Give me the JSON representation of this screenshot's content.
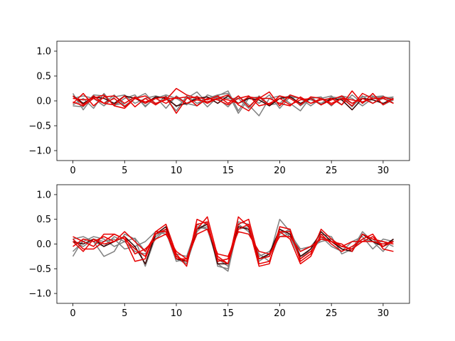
{
  "chart_data": [
    {
      "type": "line",
      "title": "",
      "xlabel": "",
      "ylabel": "",
      "xlim": [
        -1.55,
        32.55
      ],
      "ylim": [
        -1.2,
        1.2
      ],
      "xticks": [
        0,
        5,
        10,
        15,
        20,
        25,
        30
      ],
      "yticks": [
        -1.0,
        -0.5,
        0.0,
        0.5,
        1.0
      ],
      "ytick_labels": [
        "−1.0",
        "−0.5",
        "0.0",
        "0.5",
        "1.0"
      ],
      "grid": false,
      "x": [
        0,
        1,
        2,
        3,
        4,
        5,
        6,
        7,
        8,
        9,
        10,
        11,
        12,
        13,
        14,
        15,
        16,
        17,
        18,
        19,
        20,
        21,
        22,
        23,
        24,
        25,
        26,
        27,
        28,
        29,
        30,
        31
      ],
      "series": [
        {
          "color": "#808080",
          "values": [
            0.15,
            -0.18,
            0.1,
            -0.05,
            0.12,
            -0.1,
            0.05,
            0.15,
            -0.08,
            0.1,
            -0.12,
            0.05,
            0.18,
            -0.05,
            0.1,
            0.2,
            -0.2,
            0.1,
            -0.05,
            0.12,
            -0.15,
            0.08,
            0.05,
            -0.1,
            0.05,
            0.1,
            -0.08,
            0.12,
            -0.05,
            0.08,
            0.1,
            -0.05
          ]
        },
        {
          "color": "#808080",
          "values": [
            -0.08,
            0.05,
            -0.15,
            0.15,
            -0.1,
            0.05,
            0.12,
            -0.12,
            0.08,
            -0.15,
            0.1,
            -0.05,
            -0.1,
            0.12,
            0.05,
            -0.12,
            0.1,
            -0.08,
            -0.3,
            0.05,
            0.1,
            -0.05,
            -0.2,
            0.08,
            -0.08,
            0.05,
            0.08,
            -0.12,
            0.1,
            -0.05,
            0.05,
            0.08
          ]
        },
        {
          "color": "#808080",
          "values": [
            0.05,
            0.1,
            0.05,
            -0.1,
            0.08,
            0.12,
            -0.05,
            0.05,
            0.1,
            0.05,
            -0.2,
            0.1,
            -0.05,
            0.05,
            0.12,
            0.15,
            -0.25,
            0.05,
            0.08,
            -0.1,
            0.05,
            0.1,
            0.05,
            0.02,
            -0.05,
            0.08,
            0.05,
            -0.05,
            0.08,
            0.1,
            -0.08,
            0.02
          ]
        },
        {
          "color": "#808080",
          "values": [
            -0.1,
            -0.12,
            0.12,
            0.1,
            -0.08,
            -0.05,
            0.08,
            -0.1,
            0.05,
            0.12,
            0.05,
            -0.08,
            0.1,
            -0.12,
            0.08,
            0.05,
            0.05,
            -0.15,
            0.1,
            -0.08,
            -0.05,
            0.12,
            -0.1,
            0.05,
            0.08,
            -0.1,
            0.1,
            0.05,
            -0.1,
            0.05,
            0.08,
            0.05
          ]
        },
        {
          "color": "#3a0000",
          "values": [
            0.1,
            -0.05,
            0.08,
            0.05,
            -0.05,
            0.1,
            0.05,
            -0.05,
            0.08,
            0.05,
            -0.1,
            -0.05,
            0.05,
            0.08,
            -0.05,
            0.1,
            -0.05,
            0.05,
            0.02,
            -0.1,
            0.05,
            0.08,
            -0.05,
            0.05,
            -0.08,
            0.05,
            0.02,
            -0.18,
            0.05,
            0.02,
            -0.05,
            0.05
          ]
        },
        {
          "color": "#e60000",
          "values": [
            0.1,
            -0.08,
            0.1,
            -0.05,
            0.05,
            -0.12,
            0.05,
            0.1,
            -0.05,
            0.02,
            0.25,
            0.12,
            0.05,
            -0.05,
            0.05,
            0.12,
            -0.08,
            -0.2,
            0.05,
            0.18,
            -0.1,
            0.12,
            0.05,
            -0.05,
            0.02,
            0.05,
            -0.08,
            0.2,
            -0.05,
            0.15,
            -0.08,
            0.05
          ]
        },
        {
          "color": "#e60000",
          "values": [
            -0.05,
            0.15,
            -0.1,
            0.08,
            0.1,
            -0.05,
            0.08,
            -0.05,
            0.05,
            0.08,
            -0.25,
            0.05,
            0.08,
            0.02,
            0.1,
            -0.05,
            0.1,
            -0.12,
            0.08,
            -0.08,
            0.1,
            0.05,
            -0.08,
            0.08,
            0.05,
            -0.05,
            0.05,
            -0.1,
            0.15,
            0.05,
            0.05,
            -0.05
          ]
        },
        {
          "color": "#e60000",
          "values": [
            0.05,
            0.02,
            0.05,
            -0.05,
            -0.08,
            0.1,
            -0.12,
            0.05,
            -0.08,
            0.05,
            0.05,
            0.08,
            -0.1,
            0.05,
            0.02,
            -0.08,
            0.05,
            0.1,
            -0.1,
            -0.05,
            0.05,
            -0.08,
            0.02,
            0.05,
            -0.08,
            0.02,
            0.1,
            -0.05,
            0.05,
            -0.05,
            0.08,
            0.02
          ]
        },
        {
          "color": "#e60000",
          "values": [
            -0.02,
            -0.1,
            0.05,
            0.12,
            -0.1,
            -0.15,
            0.05,
            -0.02,
            0.05,
            -0.05,
            0.08,
            -0.05,
            0.02,
            -0.02,
            0.05,
            0.02,
            -0.05,
            0.08,
            0.05,
            0.05,
            -0.05,
            -0.1,
            0.08,
            -0.05,
            0.05,
            -0.08,
            0.05,
            0.02,
            -0.02,
            0.05,
            0.05,
            -0.05
          ]
        }
      ]
    },
    {
      "type": "line",
      "title": "",
      "xlabel": "",
      "ylabel": "",
      "xlim": [
        -1.55,
        32.55
      ],
      "ylim": [
        -1.2,
        1.2
      ],
      "xticks": [
        0,
        5,
        10,
        15,
        20,
        25,
        30
      ],
      "yticks": [
        -1.0,
        -0.5,
        0.0,
        0.5,
        1.0
      ],
      "ytick_labels": [
        "−1.0",
        "−0.5",
        "0.0",
        "0.5",
        "1.0"
      ],
      "grid": false,
      "x": [
        0,
        1,
        2,
        3,
        4,
        5,
        6,
        7,
        8,
        9,
        10,
        11,
        12,
        13,
        14,
        15,
        16,
        17,
        18,
        19,
        20,
        21,
        22,
        23,
        24,
        25,
        26,
        27,
        28,
        29,
        30,
        31
      ],
      "series": [
        {
          "color": "#808080",
          "values": [
            0.1,
            0.15,
            0.05,
            -0.25,
            -0.15,
            0.2,
            0.1,
            -0.45,
            0.15,
            0.3,
            -0.25,
            -0.4,
            0.25,
            0.45,
            -0.45,
            -0.5,
            0.35,
            0.3,
            -0.3,
            -0.25,
            0.5,
            0.25,
            -0.15,
            -0.05,
            0.2,
            0.15,
            -0.2,
            -0.1,
            0.25,
            0.05,
            -0.15,
            0.1
          ]
        },
        {
          "color": "#808080",
          "values": [
            -0.15,
            0.05,
            0.15,
            0.1,
            -0.05,
            0.05,
            0.12,
            -0.15,
            0.2,
            0.25,
            -0.35,
            -0.3,
            0.3,
            0.35,
            -0.4,
            -0.55,
            0.4,
            0.25,
            -0.2,
            -0.35,
            0.2,
            0.3,
            -0.25,
            -0.15,
            0.1,
            0.1,
            -0.1,
            -0.15,
            0.2,
            0.1,
            -0.05,
            0.05
          ]
        },
        {
          "color": "#808080",
          "values": [
            0.05,
            -0.05,
            0.1,
            0.05,
            0.1,
            -0.1,
            -0.05,
            0.05,
            0.25,
            0.2,
            -0.2,
            -0.25,
            0.35,
            0.3,
            -0.35,
            -0.3,
            0.3,
            0.35,
            -0.25,
            -0.15,
            0.15,
            0.2,
            -0.1,
            -0.05,
            0.05,
            0.1,
            -0.05,
            -0.1,
            0.1,
            0.05,
            0.05,
            -0.05
          ]
        },
        {
          "color": "#808080",
          "values": [
            -0.25,
            0.1,
            0.05,
            -0.05,
            0.15,
            0.05,
            -0.15,
            -0.2,
            0.1,
            0.3,
            -0.3,
            -0.4,
            0.4,
            0.3,
            -0.3,
            -0.45,
            0.45,
            0.4,
            -0.35,
            -0.2,
            0.3,
            0.15,
            -0.3,
            -0.1,
            0.15,
            -0.05,
            -0.15,
            0.05,
            0.15,
            -0.1,
            0.1,
            0.05
          ]
        },
        {
          "color": "#3a0000",
          "values": [
            0.05,
            0.0,
            0.1,
            -0.05,
            0.05,
            0.15,
            -0.05,
            -0.4,
            0.2,
            0.35,
            -0.3,
            -0.35,
            0.3,
            0.4,
            -0.4,
            -0.4,
            0.35,
            0.3,
            -0.3,
            -0.2,
            0.3,
            0.2,
            -0.25,
            -0.1,
            0.25,
            0.05,
            -0.1,
            -0.15,
            0.2,
            0.05,
            -0.05,
            0.1
          ]
        },
        {
          "color": "#e60000",
          "values": [
            0.15,
            0.05,
            -0.05,
            0.2,
            0.2,
            0.1,
            -0.35,
            -0.3,
            0.25,
            0.4,
            -0.2,
            -0.45,
            0.5,
            0.4,
            -0.3,
            -0.4,
            0.55,
            0.35,
            -0.45,
            -0.4,
            0.35,
            0.3,
            -0.35,
            -0.2,
            0.3,
            0.1,
            -0.05,
            -0.1,
            0.05,
            0.15,
            -0.05,
            0.05
          ]
        },
        {
          "color": "#e60000",
          "values": [
            -0.05,
            0.1,
            0.05,
            0.15,
            0.05,
            0.25,
            0.05,
            -0.15,
            0.2,
            0.3,
            -0.25,
            -0.35,
            0.4,
            0.45,
            -0.35,
            -0.3,
            0.4,
            0.5,
            -0.3,
            -0.25,
            0.25,
            0.1,
            -0.4,
            -0.25,
            0.2,
            0.0,
            -0.15,
            -0.05,
            0.1,
            0.2,
            -0.1,
            -0.15
          ]
        },
        {
          "color": "#e60000",
          "values": [
            0.1,
            -0.1,
            -0.1,
            0.05,
            0.2,
            0.1,
            -0.1,
            -0.25,
            0.25,
            0.25,
            -0.3,
            -0.3,
            0.3,
            0.55,
            -0.25,
            -0.4,
            0.3,
            0.4,
            -0.4,
            -0.35,
            0.25,
            0.25,
            -0.3,
            -0.15,
            0.15,
            0.05,
            0.0,
            -0.15,
            0.2,
            0.1,
            0.05,
            0.0
          ]
        },
        {
          "color": "#e60000",
          "values": [
            0.05,
            -0.15,
            0.1,
            0.0,
            0.05,
            0.15,
            -0.2,
            -0.1,
            0.1,
            0.2,
            -0.15,
            -0.3,
            0.2,
            0.3,
            -0.2,
            -0.25,
            0.25,
            0.2,
            -0.15,
            -0.2,
            0.15,
            0.15,
            -0.15,
            -0.05,
            0.1,
            0.05,
            -0.05,
            0.05,
            0.05,
            0.05,
            0.0,
            0.05
          ]
        }
      ]
    }
  ]
}
